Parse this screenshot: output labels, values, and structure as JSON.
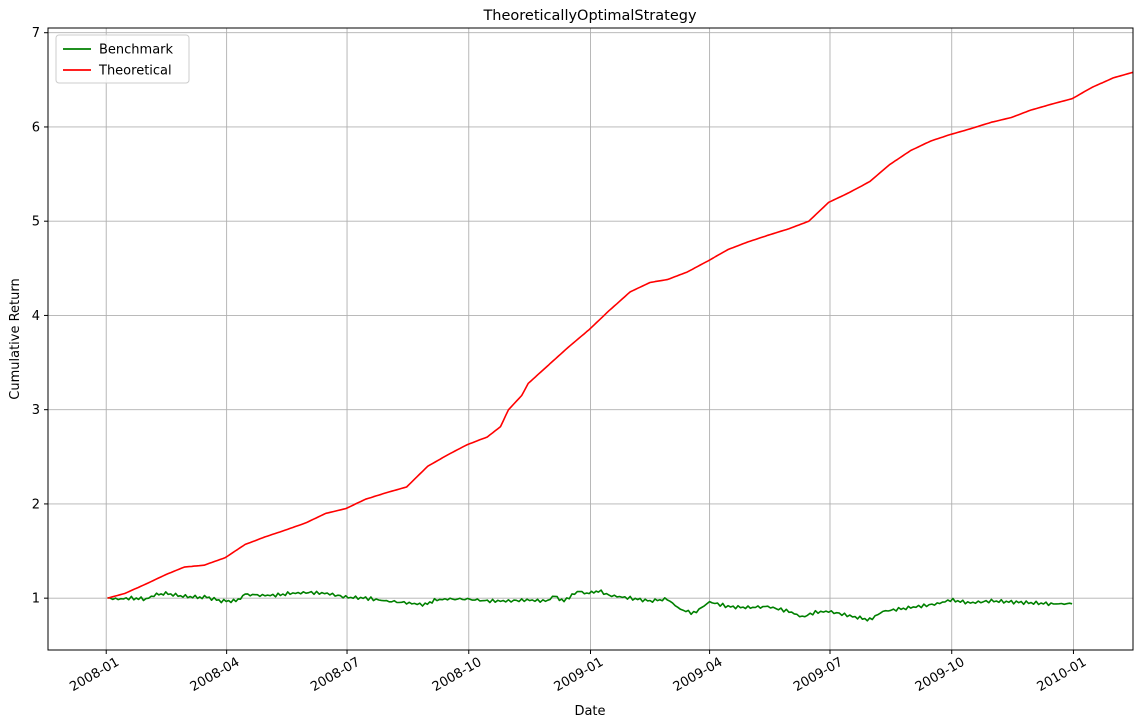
{
  "chart_data": {
    "type": "line",
    "title": "TheoreticallyOptimalStrategy",
    "xlabel": "Date",
    "ylabel": "Cumulative Return",
    "xlim": [
      "2007-11-18",
      "2010-02-15"
    ],
    "ylim": [
      0.45,
      7.05
    ],
    "grid": true,
    "legend_position": "top-left",
    "x_ticks": [
      "2008-01",
      "2008-04",
      "2008-07",
      "2008-10",
      "2009-01",
      "2009-04",
      "2009-07",
      "2009-10",
      "2010-01"
    ],
    "y_ticks": [
      1,
      2,
      3,
      4,
      5,
      6,
      7
    ],
    "series": [
      {
        "name": "Benchmark",
        "color": "#008000",
        "points": [
          [
            "2008-01-02",
            1.0
          ],
          [
            "2008-01-10",
            0.99
          ],
          [
            "2008-01-20",
            1.0
          ],
          [
            "2008-01-31",
            0.99
          ],
          [
            "2008-02-08",
            1.04
          ],
          [
            "2008-02-15",
            1.05
          ],
          [
            "2008-02-28",
            1.02
          ],
          [
            "2008-03-10",
            1.01
          ],
          [
            "2008-03-17",
            1.01
          ],
          [
            "2008-03-28",
            0.97
          ],
          [
            "2008-04-08",
            0.97
          ],
          [
            "2008-04-15",
            1.04
          ],
          [
            "2008-04-28",
            1.03
          ],
          [
            "2008-05-08",
            1.03
          ],
          [
            "2008-05-19",
            1.05
          ],
          [
            "2008-06-02",
            1.06
          ],
          [
            "2008-06-16",
            1.05
          ],
          [
            "2008-06-30",
            1.01
          ],
          [
            "2008-07-15",
            1.0
          ],
          [
            "2008-07-31",
            0.97
          ],
          [
            "2008-08-15",
            0.95
          ],
          [
            "2008-08-29",
            0.93
          ],
          [
            "2008-09-05",
            0.98
          ],
          [
            "2008-09-15",
            0.99
          ],
          [
            "2008-09-30",
            0.99
          ],
          [
            "2008-10-15",
            0.97
          ],
          [
            "2008-10-31",
            0.97
          ],
          [
            "2008-11-14",
            0.98
          ],
          [
            "2008-11-28",
            0.97
          ],
          [
            "2008-12-05",
            1.02
          ],
          [
            "2008-12-12",
            0.97
          ],
          [
            "2008-12-22",
            1.07
          ],
          [
            "2008-12-31",
            1.05
          ],
          [
            "2009-01-07",
            1.08
          ],
          [
            "2009-01-15",
            1.03
          ],
          [
            "2009-01-31",
            1.0
          ],
          [
            "2009-02-15",
            0.97
          ],
          [
            "2009-02-28",
            0.99
          ],
          [
            "2009-03-10",
            0.88
          ],
          [
            "2009-03-20",
            0.84
          ],
          [
            "2009-04-01",
            0.96
          ],
          [
            "2009-04-15",
            0.91
          ],
          [
            "2009-04-30",
            0.9
          ],
          [
            "2009-05-15",
            0.91
          ],
          [
            "2009-05-31",
            0.86
          ],
          [
            "2009-06-10",
            0.8
          ],
          [
            "2009-06-20",
            0.85
          ],
          [
            "2009-06-30",
            0.86
          ],
          [
            "2009-07-10",
            0.83
          ],
          [
            "2009-07-20",
            0.8
          ],
          [
            "2009-07-31",
            0.77
          ],
          [
            "2009-08-10",
            0.86
          ],
          [
            "2009-08-20",
            0.88
          ],
          [
            "2009-08-31",
            0.9
          ],
          [
            "2009-09-10",
            0.92
          ],
          [
            "2009-09-20",
            0.94
          ],
          [
            "2009-09-30",
            0.98
          ],
          [
            "2009-10-15",
            0.95
          ],
          [
            "2009-10-31",
            0.97
          ],
          [
            "2009-11-15",
            0.96
          ],
          [
            "2009-11-30",
            0.95
          ],
          [
            "2009-12-15",
            0.94
          ],
          [
            "2009-12-31",
            0.94
          ]
        ]
      },
      {
        "name": "Theoretical",
        "color": "#ff0000",
        "points": [
          [
            "2008-01-02",
            1.0
          ],
          [
            "2008-01-15",
            1.05
          ],
          [
            "2008-01-31",
            1.15
          ],
          [
            "2008-02-15",
            1.25
          ],
          [
            "2008-02-29",
            1.33
          ],
          [
            "2008-03-15",
            1.35
          ],
          [
            "2008-03-31",
            1.43
          ],
          [
            "2008-04-15",
            1.57
          ],
          [
            "2008-04-30",
            1.65
          ],
          [
            "2008-05-15",
            1.72
          ],
          [
            "2008-05-31",
            1.8
          ],
          [
            "2008-06-15",
            1.9
          ],
          [
            "2008-06-30",
            1.95
          ],
          [
            "2008-07-15",
            2.05
          ],
          [
            "2008-07-31",
            2.12
          ],
          [
            "2008-08-15",
            2.18
          ],
          [
            "2008-08-31",
            2.4
          ],
          [
            "2008-09-15",
            2.52
          ],
          [
            "2008-09-30",
            2.63
          ],
          [
            "2008-10-15",
            2.71
          ],
          [
            "2008-10-25",
            2.82
          ],
          [
            "2008-10-31",
            3.0
          ],
          [
            "2008-11-10",
            3.15
          ],
          [
            "2008-11-15",
            3.28
          ],
          [
            "2008-11-30",
            3.47
          ],
          [
            "2008-12-15",
            3.66
          ],
          [
            "2008-12-31",
            3.85
          ],
          [
            "2009-01-15",
            4.05
          ],
          [
            "2009-01-31",
            4.25
          ],
          [
            "2009-02-15",
            4.35
          ],
          [
            "2009-02-28",
            4.38
          ],
          [
            "2009-03-15",
            4.46
          ],
          [
            "2009-03-31",
            4.58
          ],
          [
            "2009-04-15",
            4.7
          ],
          [
            "2009-04-30",
            4.78
          ],
          [
            "2009-05-15",
            4.85
          ],
          [
            "2009-05-31",
            4.92
          ],
          [
            "2009-06-15",
            5.0
          ],
          [
            "2009-06-30",
            5.2
          ],
          [
            "2009-07-15",
            5.3
          ],
          [
            "2009-07-31",
            5.42
          ],
          [
            "2009-08-15",
            5.6
          ],
          [
            "2009-08-31",
            5.75
          ],
          [
            "2009-09-15",
            5.85
          ],
          [
            "2009-09-30",
            5.92
          ],
          [
            "2009-10-15",
            5.98
          ],
          [
            "2009-10-31",
            6.05
          ],
          [
            "2009-11-15",
            6.1
          ],
          [
            "2009-11-30",
            6.18
          ],
          [
            "2009-12-15",
            6.24
          ],
          [
            "2009-12-31",
            6.3
          ],
          [
            "2010-01-15",
            6.42
          ],
          [
            "2010-01-31",
            6.52
          ],
          [
            "2010-02-15",
            6.58
          ]
        ]
      }
    ]
  }
}
